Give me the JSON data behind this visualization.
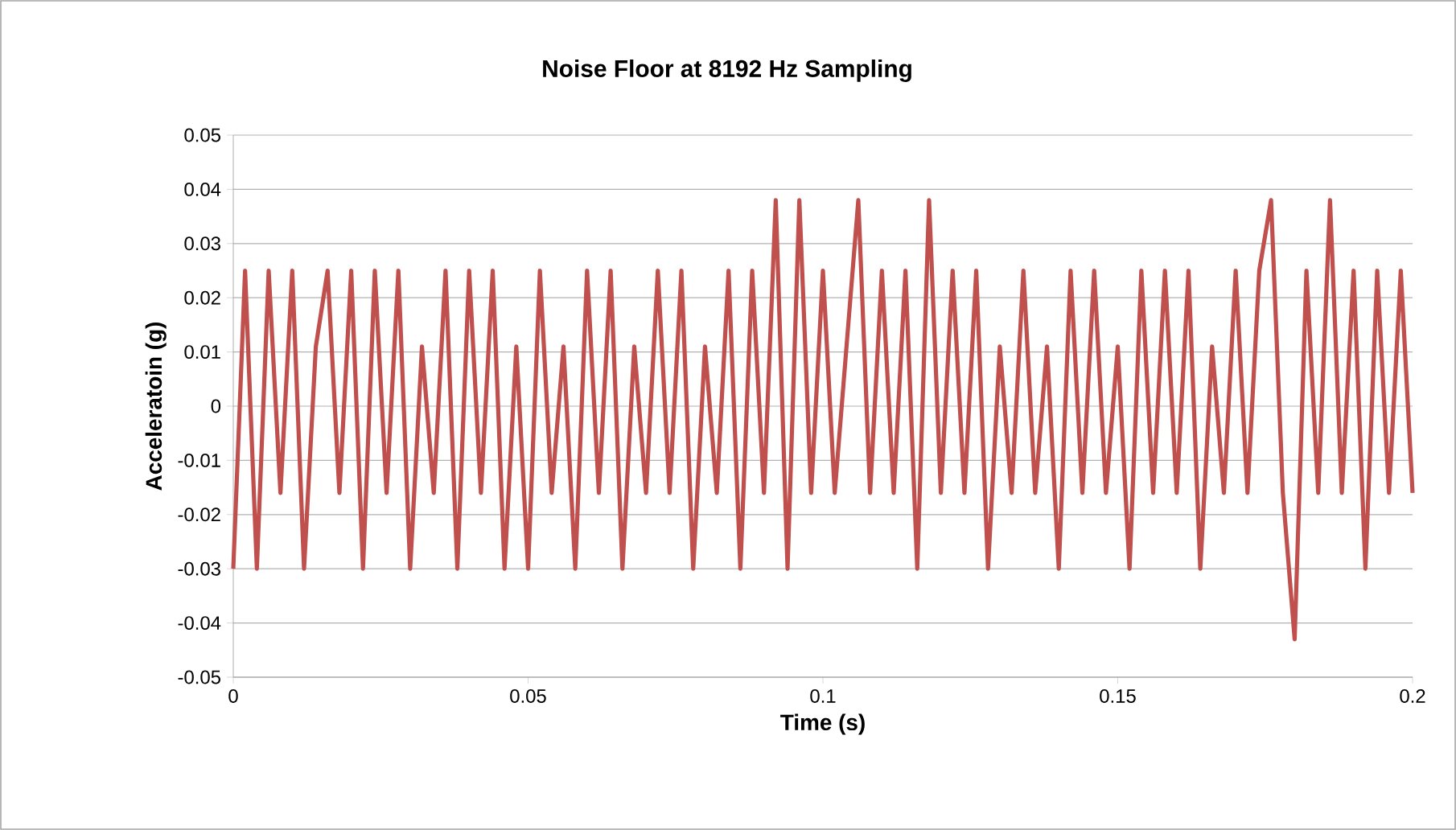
{
  "chart_data": {
    "type": "line",
    "title": "Noise Floor at 8192 Hz Sampling",
    "xlabel": "Time (s)",
    "ylabel": "Acceleratoin (g)",
    "xlim": [
      0,
      0.2
    ],
    "xticks": [
      0,
      0.05,
      0.1,
      0.15,
      0.2
    ],
    "ylim": [
      -0.05,
      0.05
    ],
    "yticks": [
      -0.05,
      -0.04,
      -0.03,
      -0.02,
      -0.01,
      0,
      0.01,
      0.02,
      0.03,
      0.04,
      0.05
    ],
    "grid": "y",
    "legend": false,
    "marker": "none",
    "line_style": "solid",
    "x": [
      0,
      0.002,
      0.004,
      0.006,
      0.008,
      0.01,
      0.012,
      0.014,
      0.016,
      0.018,
      0.02,
      0.022,
      0.024,
      0.026,
      0.028,
      0.03,
      0.032,
      0.034,
      0.036,
      0.038,
      0.04,
      0.042,
      0.044,
      0.046,
      0.048,
      0.05,
      0.052,
      0.054,
      0.056,
      0.058,
      0.06,
      0.062,
      0.064,
      0.066,
      0.068,
      0.07,
      0.072,
      0.074,
      0.076,
      0.078,
      0.08,
      0.082,
      0.084,
      0.086,
      0.088,
      0.09,
      0.092,
      0.094,
      0.096,
      0.098,
      0.1,
      0.102,
      0.104,
      0.106,
      0.108,
      0.11,
      0.112,
      0.114,
      0.116,
      0.118,
      0.12,
      0.122,
      0.124,
      0.126,
      0.128,
      0.13,
      0.132,
      0.134,
      0.136,
      0.138,
      0.14,
      0.142,
      0.144,
      0.146,
      0.148,
      0.15,
      0.152,
      0.154,
      0.156,
      0.158,
      0.16,
      0.162,
      0.164,
      0.166,
      0.168,
      0.17,
      0.172,
      0.174,
      0.176,
      0.178,
      0.18,
      0.182,
      0.184,
      0.186,
      0.188,
      0.19,
      0.192,
      0.194,
      0.196,
      0.198,
      0.2
    ],
    "series": [
      {
        "color": "#c0504d",
        "values": [
          -0.03,
          0.025,
          -0.03,
          0.025,
          -0.016,
          0.025,
          -0.03,
          0.011,
          0.025,
          -0.016,
          0.025,
          -0.03,
          0.025,
          -0.016,
          0.025,
          -0.03,
          0.011,
          -0.016,
          0.025,
          -0.03,
          0.025,
          -0.016,
          0.025,
          -0.03,
          0.011,
          -0.03,
          0.025,
          -0.016,
          0.011,
          -0.03,
          0.025,
          -0.016,
          0.025,
          -0.03,
          0.011,
          -0.016,
          0.025,
          -0.016,
          0.025,
          -0.03,
          0.011,
          -0.016,
          0.025,
          -0.03,
          0.025,
          -0.016,
          0.038,
          -0.03,
          0.038,
          -0.016,
          0.025,
          -0.016,
          0.011,
          0.038,
          -0.016,
          0.025,
          -0.016,
          0.025,
          -0.03,
          0.038,
          -0.016,
          0.025,
          -0.016,
          0.025,
          -0.03,
          0.011,
          -0.016,
          0.025,
          -0.016,
          0.011,
          -0.03,
          0.025,
          -0.016,
          0.025,
          -0.016,
          0.011,
          -0.03,
          0.025,
          -0.016,
          0.025,
          -0.016,
          0.025,
          -0.03,
          0.011,
          -0.016,
          0.025,
          -0.016,
          0.025,
          0.038,
          -0.016,
          -0.043,
          0.025,
          -0.016,
          0.038,
          -0.016,
          0.025,
          -0.03,
          0.025,
          -0.016,
          0.025,
          -0.016
        ]
      }
    ]
  }
}
